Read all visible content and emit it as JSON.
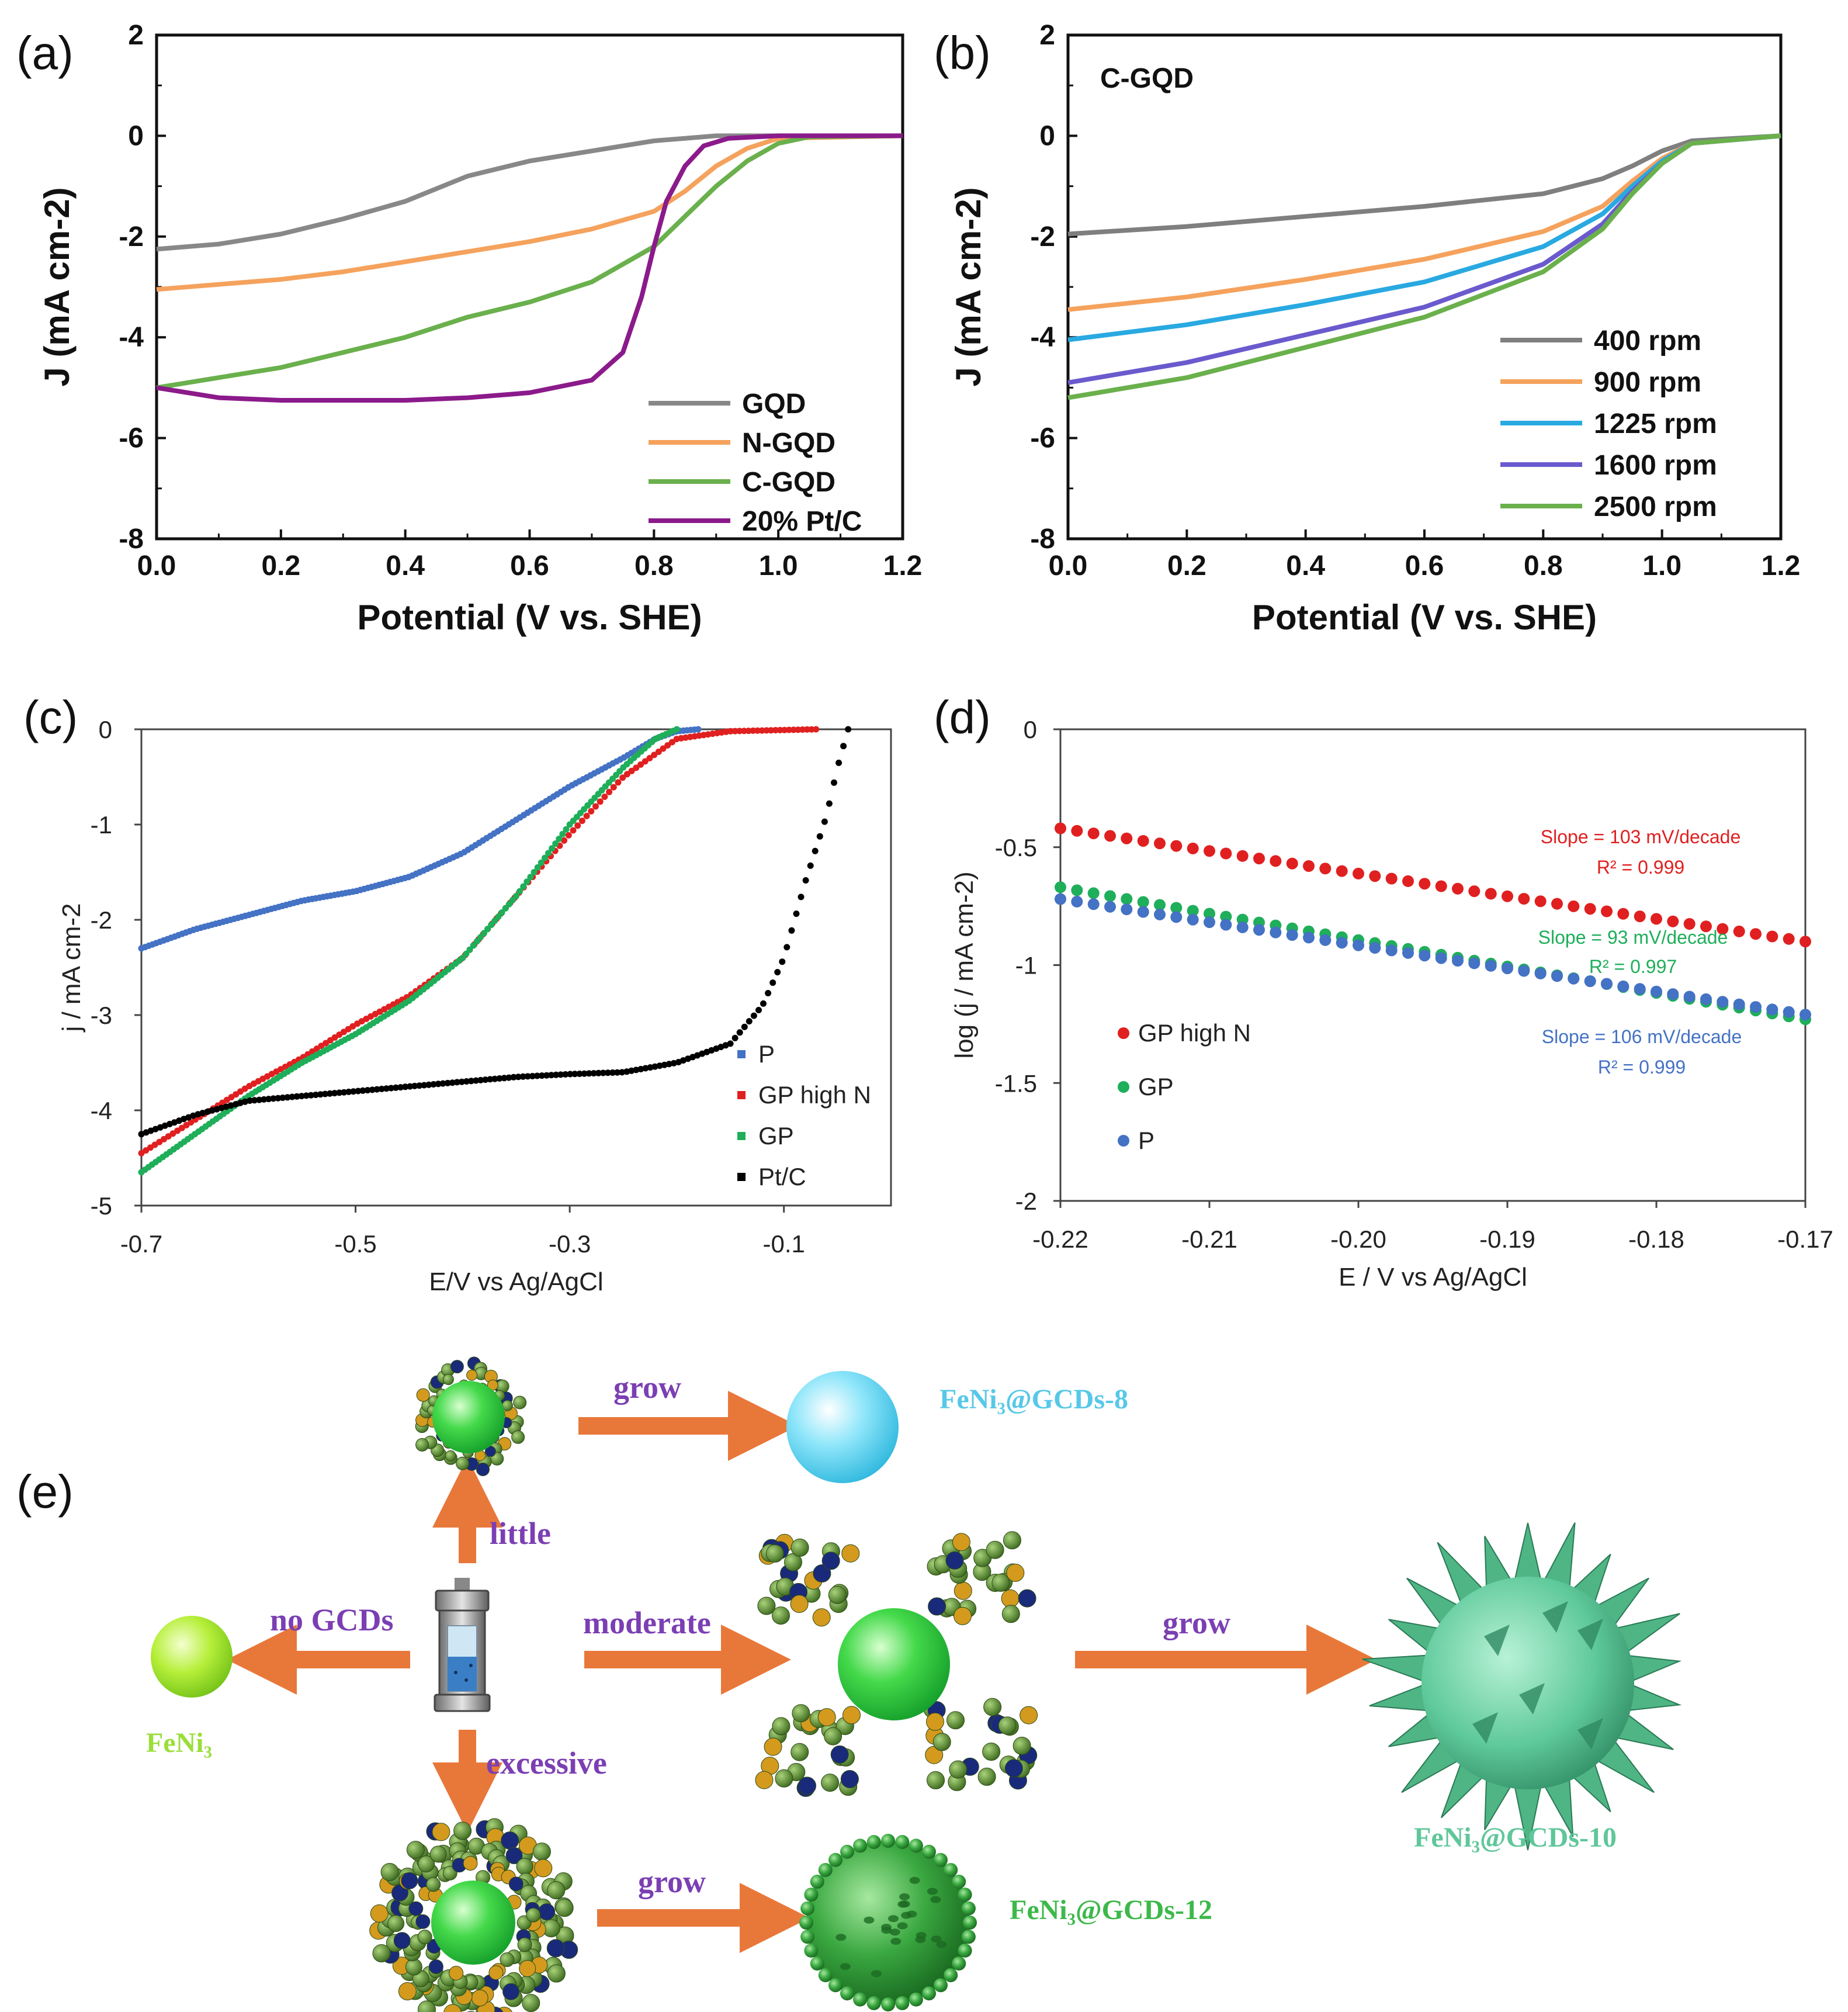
{
  "chart_data": [
    {
      "panel": "(a)",
      "type": "line",
      "title": "",
      "xlabel": "Potential (V vs. SHE)",
      "ylabel": "J (mA cm-2)",
      "xlim": [
        0,
        1.2
      ],
      "ylim": [
        -8,
        2
      ],
      "xticks": [
        "0.0",
        "0.2",
        "0.4",
        "0.6",
        "0.8",
        "1.0",
        "1.2"
      ],
      "yticks": [
        "2",
        "0",
        "-2",
        "-4",
        "-6",
        "-8"
      ],
      "legend_position": "bottom-right",
      "series": [
        {
          "name": "GQD",
          "color": "#888888",
          "points": [
            [
              0,
              -2.25
            ],
            [
              0.1,
              -2.15
            ],
            [
              0.2,
              -1.95
            ],
            [
              0.3,
              -1.65
            ],
            [
              0.4,
              -1.3
            ],
            [
              0.5,
              -0.8
            ],
            [
              0.6,
              -0.5
            ],
            [
              0.7,
              -0.3
            ],
            [
              0.8,
              -0.1
            ],
            [
              0.9,
              0
            ],
            [
              1.0,
              0
            ],
            [
              1.2,
              0
            ]
          ]
        },
        {
          "name": "N-GQD",
          "color": "#f5a25d",
          "points": [
            [
              0,
              -3.05
            ],
            [
              0.1,
              -2.95
            ],
            [
              0.2,
              -2.85
            ],
            [
              0.3,
              -2.7
            ],
            [
              0.4,
              -2.5
            ],
            [
              0.5,
              -2.3
            ],
            [
              0.6,
              -2.1
            ],
            [
              0.7,
              -1.85
            ],
            [
              0.8,
              -1.5
            ],
            [
              0.85,
              -1.1
            ],
            [
              0.9,
              -0.6
            ],
            [
              0.95,
              -0.25
            ],
            [
              1.0,
              -0.05
            ],
            [
              1.2,
              0
            ]
          ]
        },
        {
          "name": "C-GQD",
          "color": "#6ab04c",
          "points": [
            [
              0,
              -5.0
            ],
            [
              0.1,
              -4.8
            ],
            [
              0.2,
              -4.6
            ],
            [
              0.3,
              -4.3
            ],
            [
              0.4,
              -4.0
            ],
            [
              0.5,
              -3.6
            ],
            [
              0.6,
              -3.3
            ],
            [
              0.7,
              -2.9
            ],
            [
              0.8,
              -2.2
            ],
            [
              0.85,
              -1.6
            ],
            [
              0.9,
              -1.0
            ],
            [
              0.95,
              -0.5
            ],
            [
              1.0,
              -0.15
            ],
            [
              1.05,
              -0.02
            ],
            [
              1.2,
              0
            ]
          ]
        },
        {
          "name": "20% Pt/C",
          "color": "#8b1a8b",
          "points": [
            [
              0,
              -5.0
            ],
            [
              0.1,
              -5.2
            ],
            [
              0.2,
              -5.25
            ],
            [
              0.3,
              -5.25
            ],
            [
              0.4,
              -5.25
            ],
            [
              0.5,
              -5.2
            ],
            [
              0.6,
              -5.1
            ],
            [
              0.7,
              -4.85
            ],
            [
              0.75,
              -4.3
            ],
            [
              0.78,
              -3.2
            ],
            [
              0.8,
              -2.2
            ],
            [
              0.82,
              -1.3
            ],
            [
              0.85,
              -0.6
            ],
            [
              0.88,
              -0.2
            ],
            [
              0.92,
              -0.05
            ],
            [
              1.0,
              0
            ],
            [
              1.2,
              0
            ]
          ]
        }
      ]
    },
    {
      "panel": "(b)",
      "type": "line",
      "title": "C-GQD",
      "xlabel": "Potential (V vs. SHE)",
      "ylabel": "J (mA cm-2)",
      "xlim": [
        0,
        1.2
      ],
      "ylim": [
        -8,
        2
      ],
      "xticks": [
        "0.0",
        "0.2",
        "0.4",
        "0.6",
        "0.8",
        "1.0",
        "1.2"
      ],
      "yticks": [
        "2",
        "0",
        "-2",
        "-4",
        "-6",
        "-8"
      ],
      "legend_position": "bottom-right",
      "series": [
        {
          "name": "400 rpm",
          "color": "#7f7f7f",
          "points": [
            [
              0,
              -1.95
            ],
            [
              0.2,
              -1.8
            ],
            [
              0.4,
              -1.6
            ],
            [
              0.6,
              -1.4
            ],
            [
              0.8,
              -1.15
            ],
            [
              0.9,
              -0.85
            ],
            [
              0.95,
              -0.6
            ],
            [
              1.0,
              -0.3
            ],
            [
              1.05,
              -0.1
            ],
            [
              1.2,
              0
            ]
          ]
        },
        {
          "name": "900 rpm",
          "color": "#f5a25d",
          "points": [
            [
              0,
              -3.45
            ],
            [
              0.2,
              -3.2
            ],
            [
              0.4,
              -2.85
            ],
            [
              0.6,
              -2.45
            ],
            [
              0.8,
              -1.9
            ],
            [
              0.9,
              -1.4
            ],
            [
              0.95,
              -0.9
            ],
            [
              1.0,
              -0.45
            ],
            [
              1.05,
              -0.15
            ],
            [
              1.2,
              0
            ]
          ]
        },
        {
          "name": "1225 rpm",
          "color": "#29a9e1",
          "points": [
            [
              0,
              -4.05
            ],
            [
              0.2,
              -3.75
            ],
            [
              0.4,
              -3.35
            ],
            [
              0.6,
              -2.9
            ],
            [
              0.8,
              -2.2
            ],
            [
              0.9,
              -1.55
            ],
            [
              0.95,
              -1.0
            ],
            [
              1.0,
              -0.5
            ],
            [
              1.05,
              -0.15
            ],
            [
              1.2,
              0
            ]
          ]
        },
        {
          "name": "1600 rpm",
          "color": "#6a5acd",
          "points": [
            [
              0,
              -4.9
            ],
            [
              0.2,
              -4.5
            ],
            [
              0.4,
              -3.95
            ],
            [
              0.6,
              -3.4
            ],
            [
              0.8,
              -2.55
            ],
            [
              0.9,
              -1.75
            ],
            [
              0.95,
              -1.1
            ],
            [
              1.0,
              -0.55
            ],
            [
              1.05,
              -0.15
            ],
            [
              1.2,
              0
            ]
          ]
        },
        {
          "name": "2500 rpm",
          "color": "#6ab04c",
          "points": [
            [
              0,
              -5.2
            ],
            [
              0.2,
              -4.8
            ],
            [
              0.4,
              -4.2
            ],
            [
              0.6,
              -3.6
            ],
            [
              0.8,
              -2.7
            ],
            [
              0.9,
              -1.85
            ],
            [
              0.95,
              -1.15
            ],
            [
              1.0,
              -0.55
            ],
            [
              1.05,
              -0.15
            ],
            [
              1.2,
              0
            ]
          ]
        }
      ]
    },
    {
      "panel": "(c)",
      "type": "scatter",
      "title": "",
      "xlabel": "E/V vs Ag/AgCl",
      "ylabel": "j / mA cm-2",
      "xlim": [
        -0.7,
        0.0
      ],
      "ylim": [
        -5,
        0
      ],
      "xticks": [
        "-0.7",
        "-0.5",
        "-0.3",
        "-0.1"
      ],
      "yticks": [
        "0",
        "-1",
        "-2",
        "-3",
        "-4",
        "-5"
      ],
      "legend_position": "bottom-right",
      "series": [
        {
          "name": "P",
          "color": "#4472c4",
          "points": [
            [
              -0.7,
              -2.3
            ],
            [
              -0.65,
              -2.1
            ],
            [
              -0.6,
              -1.95
            ],
            [
              -0.55,
              -1.8
            ],
            [
              -0.5,
              -1.7
            ],
            [
              -0.45,
              -1.55
            ],
            [
              -0.4,
              -1.3
            ],
            [
              -0.35,
              -0.95
            ],
            [
              -0.3,
              -0.6
            ],
            [
              -0.25,
              -0.3
            ],
            [
              -0.22,
              -0.1
            ],
            [
              -0.2,
              -0.02
            ],
            [
              -0.18,
              0
            ]
          ]
        },
        {
          "name": "GP high N",
          "color": "#e02020",
          "points": [
            [
              -0.7,
              -4.45
            ],
            [
              -0.65,
              -4.1
            ],
            [
              -0.6,
              -3.75
            ],
            [
              -0.55,
              -3.45
            ],
            [
              -0.5,
              -3.1
            ],
            [
              -0.45,
              -2.8
            ],
            [
              -0.4,
              -2.4
            ],
            [
              -0.35,
              -1.75
            ],
            [
              -0.3,
              -1.1
            ],
            [
              -0.25,
              -0.5
            ],
            [
              -0.2,
              -0.1
            ],
            [
              -0.15,
              -0.02
            ],
            [
              -0.07,
              0
            ]
          ]
        },
        {
          "name": "GP",
          "color": "#1fae5a",
          "points": [
            [
              -0.7,
              -4.65
            ],
            [
              -0.65,
              -4.25
            ],
            [
              -0.6,
              -3.85
            ],
            [
              -0.55,
              -3.5
            ],
            [
              -0.5,
              -3.2
            ],
            [
              -0.45,
              -2.85
            ],
            [
              -0.4,
              -2.4
            ],
            [
              -0.35,
              -1.75
            ],
            [
              -0.3,
              -1.0
            ],
            [
              -0.25,
              -0.4
            ],
            [
              -0.22,
              -0.1
            ],
            [
              -0.2,
              0
            ]
          ]
        },
        {
          "name": "Pt/C",
          "color": "#000000",
          "points": [
            [
              -0.7,
              -4.25
            ],
            [
              -0.65,
              -4.05
            ],
            [
              -0.6,
              -3.9
            ],
            [
              -0.55,
              -3.85
            ],
            [
              -0.5,
              -3.8
            ],
            [
              -0.45,
              -3.75
            ],
            [
              -0.4,
              -3.7
            ],
            [
              -0.35,
              -3.65
            ],
            [
              -0.3,
              -3.62
            ],
            [
              -0.25,
              -3.6
            ],
            [
              -0.2,
              -3.5
            ],
            [
              -0.15,
              -3.3
            ],
            [
              -0.12,
              -2.9
            ],
            [
              -0.1,
              -2.4
            ],
            [
              -0.08,
              -1.6
            ],
            [
              -0.06,
              -0.9
            ],
            [
              -0.05,
              -0.4
            ],
            [
              -0.04,
              0
            ]
          ]
        }
      ]
    },
    {
      "panel": "(d)",
      "type": "scatter",
      "title": "",
      "xlabel": "E / V vs Ag/AgCl",
      "ylabel": "log (j / mA cm-2)",
      "xlim": [
        -0.22,
        -0.17
      ],
      "ylim": [
        -2,
        0
      ],
      "xticks": [
        "-0.22",
        "-0.21",
        "-0.20",
        "-0.19",
        "-0.18",
        "-0.17"
      ],
      "yticks": [
        "0",
        "-0.5",
        "-1",
        "-1.5",
        "-2"
      ],
      "legend_position": "left",
      "series": [
        {
          "name": "GP high N",
          "color": "#e02020",
          "start": -0.42,
          "end": -0.9,
          "slope_text": "Slope = 103 mV/decade",
          "r2_text": "R² = 0.999"
        },
        {
          "name": "GP",
          "color": "#1fae5a",
          "start": -0.67,
          "end": -1.23,
          "slope_text": "Slope = 93 mV/decade",
          "r2_text": "R² = 0.997"
        },
        {
          "name": "P",
          "color": "#4472c4",
          "start": -0.72,
          "end": -1.21,
          "slope_text": "Slope = 106 mV/decade",
          "r2_text": "R² = 0.999"
        }
      ]
    }
  ],
  "labels": {
    "a": "(a)",
    "b": "(b)",
    "c": "(c)",
    "d": "(d)",
    "e": "(e)",
    "b_title": "C-GQD"
  },
  "scheme": {
    "grow1": "grow",
    "grow2": "grow",
    "grow3": "grow",
    "little": "little",
    "no_gcds": "no GCDs",
    "moderate": "moderate",
    "excessive": "excessive",
    "name_8": "FeNi₃@GCDs-8",
    "name_feni3": "FeNi₃",
    "name_10": "FeNi₃@GCDs-10",
    "name_12": "FeNi₃@GCDs-12",
    "colors": {
      "arrow": "#e8783a",
      "purple": "#7b3fb3",
      "cyan": "#57c8e8",
      "lime": "#9ade3a",
      "mint": "#5fc79a",
      "green": "#3db84a"
    }
  }
}
